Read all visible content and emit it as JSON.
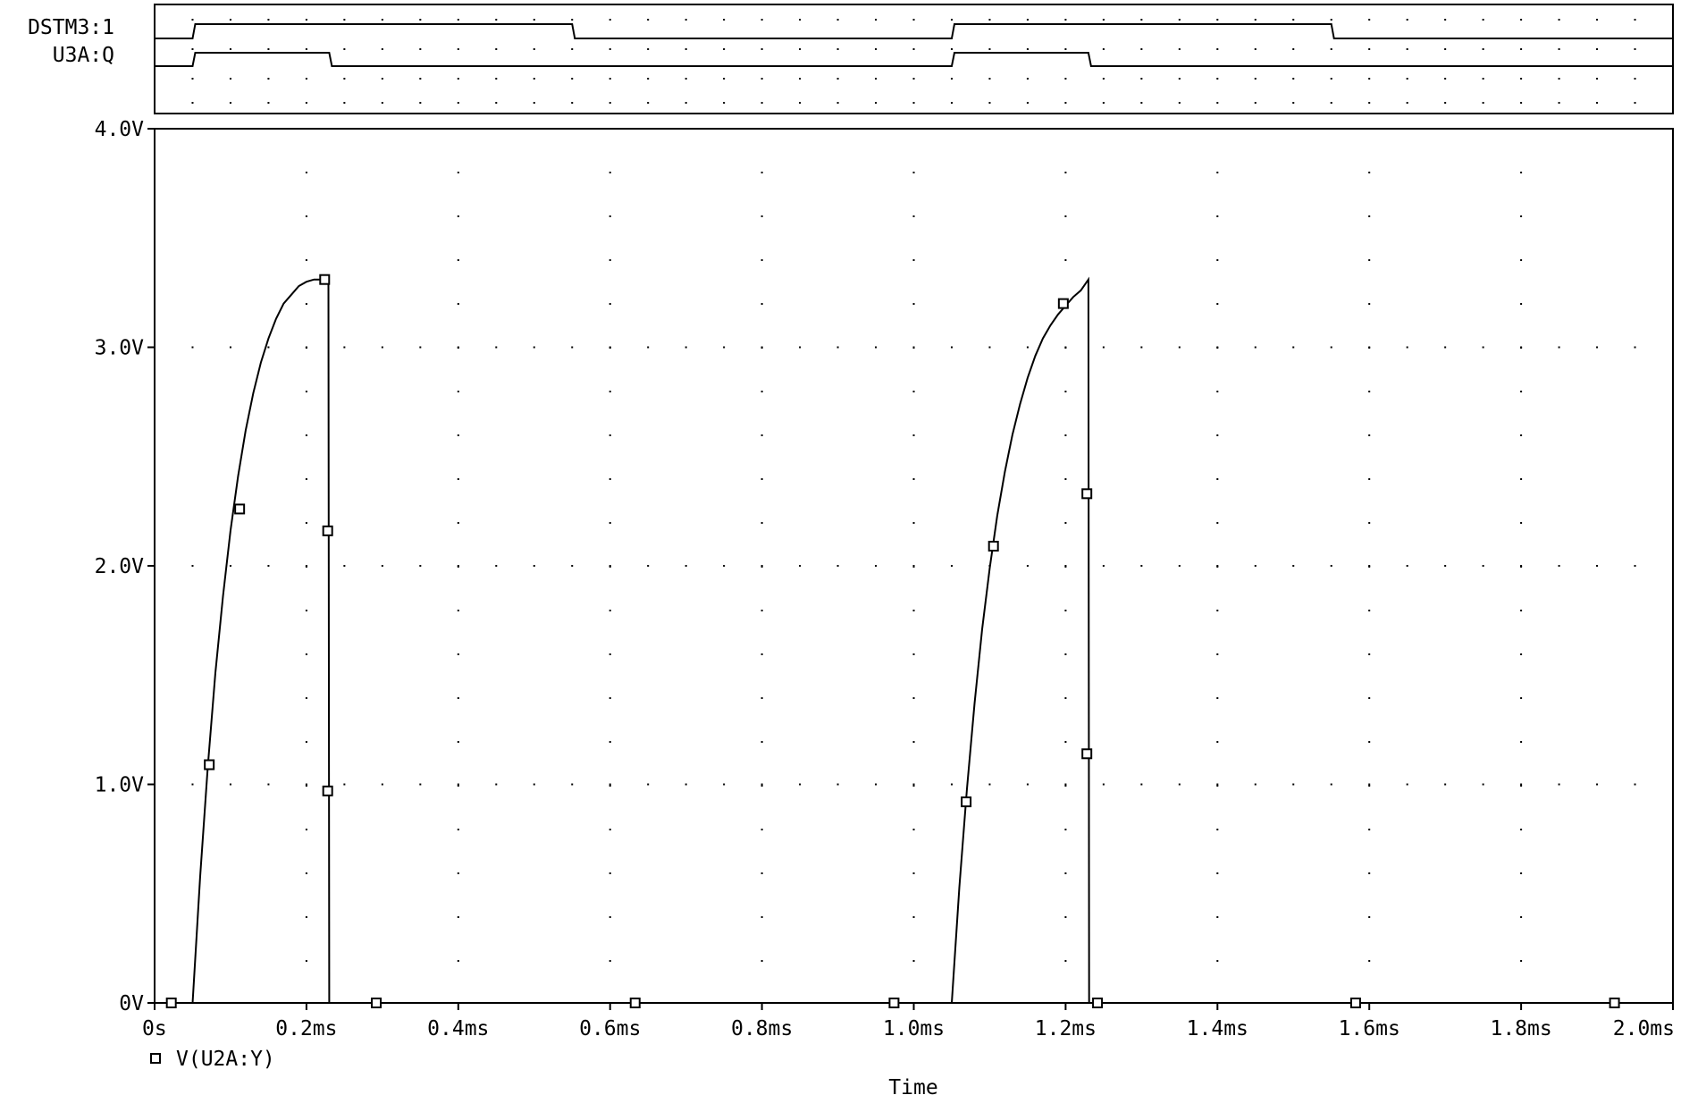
{
  "chart_data": {
    "digital": {
      "signals": [
        {
          "name": "DSTM3:1",
          "transitions_ms": [
            0.05,
            0.55,
            1.05,
            1.55
          ],
          "initial": 0
        },
        {
          "name": "U3A:Q",
          "transitions_ms": [
            0.05,
            0.23,
            1.05,
            1.23
          ],
          "initial": 0
        }
      ]
    },
    "analog": {
      "type": "line",
      "xlabel": "Time",
      "xlim": [
        0,
        2.0
      ],
      "ylim": [
        0,
        4.0
      ],
      "x_ticks": [
        0,
        0.2,
        0.4,
        0.6,
        0.8,
        1.0,
        1.2,
        1.4,
        1.6,
        1.8,
        2.0
      ],
      "x_tick_labels": [
        "0s",
        "0.2ms",
        "0.4ms",
        "0.6ms",
        "0.8ms",
        "1.0ms",
        "1.2ms",
        "1.4ms",
        "1.6ms",
        "1.8ms",
        "2.0ms"
      ],
      "y_ticks": [
        0,
        1.0,
        2.0,
        3.0,
        4.0
      ],
      "y_tick_labels": [
        "0V",
        "1.0V",
        "2.0V",
        "3.0V",
        "4.0V"
      ],
      "grid": "dotted",
      "legend": {
        "marker": "square",
        "label": "V(U2A:Y)",
        "position": "bottom-left"
      },
      "series": [
        {
          "name": "V(U2A:Y)",
          "x": [
            0,
            0.05,
            0.06,
            0.07,
            0.08,
            0.09,
            0.1,
            0.11,
            0.12,
            0.13,
            0.14,
            0.15,
            0.16,
            0.17,
            0.18,
            0.19,
            0.2,
            0.21,
            0.22,
            0.224,
            0.229,
            0.23,
            1.05,
            1.06,
            1.07,
            1.08,
            1.09,
            1.1,
            1.11,
            1.12,
            1.13,
            1.14,
            1.15,
            1.16,
            1.17,
            1.18,
            1.19,
            1.2,
            1.21,
            1.22,
            1.23,
            1.231,
            2.0
          ],
          "y": [
            0,
            0,
            0.58,
            1.08,
            1.51,
            1.86,
            2.16,
            2.41,
            2.62,
            2.79,
            2.93,
            3.04,
            3.13,
            3.2,
            3.24,
            3.28,
            3.3,
            3.31,
            3.31,
            3.31,
            3.31,
            0,
            0,
            0.53,
            0.98,
            1.37,
            1.71,
            1.99,
            2.23,
            2.43,
            2.6,
            2.74,
            2.86,
            2.96,
            3.04,
            3.1,
            3.15,
            3.19,
            3.23,
            3.26,
            3.31,
            0,
            0
          ],
          "markers_x": [
            0.022,
            0.072,
            0.112,
            0.224,
            0.228,
            0.228,
            0.292,
            0.633,
            0.974,
            1.069,
            1.105,
            1.197,
            1.228,
            1.228,
            1.242,
            1.582,
            1.923
          ],
          "markers_y": [
            0,
            1.09,
            2.26,
            3.31,
            2.16,
            0.97,
            0,
            0,
            0,
            0.92,
            2.09,
            3.2,
            2.33,
            1.14,
            0,
            0,
            0
          ]
        }
      ]
    }
  }
}
